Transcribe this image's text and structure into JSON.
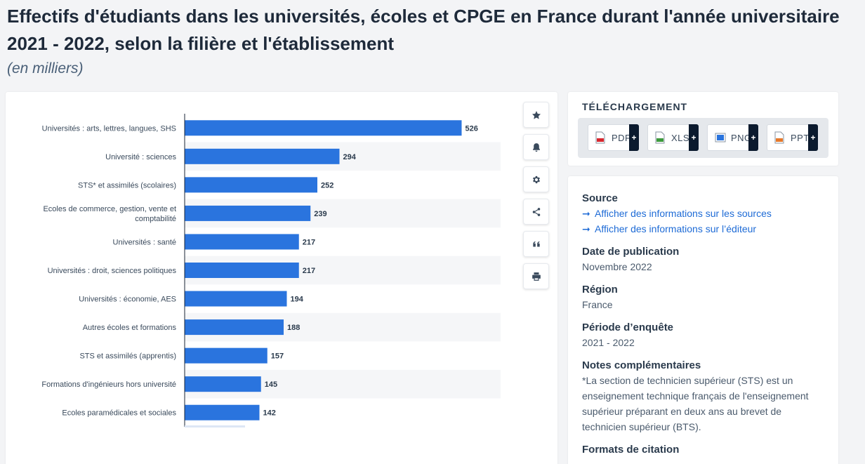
{
  "page": {
    "title": "Effectifs d'étudiants dans les universités, écoles et CPGE en France durant l'année universitaire 2021 - 2022, selon la filière et l'établissement",
    "subtitle": "(en milliers)"
  },
  "chart_data": {
    "type": "bar",
    "orientation": "horizontal",
    "title": "",
    "xlabel": "",
    "ylabel": "",
    "categories": [
      "Universités : arts, lettres, langues, SHS",
      "Université : sciences",
      "STS* et assimilés (scolaires)",
      "Ecoles de commerce, gestion, vente et comptabilité",
      "Universités : santé",
      "Universités : droit, sciences politiques",
      "Universités : économie, AES",
      "Autres écoles et formations",
      "STS et assimilés (apprentis)",
      "Formations d'ingénieurs hors université",
      "Ecoles paramédicales et sociales"
    ],
    "category_lines": [
      [
        "Universités : arts, lettres, langues, SHS"
      ],
      [
        "Université : sciences"
      ],
      [
        "STS* et assimilés (scolaires)"
      ],
      [
        "Ecoles de commerce, gestion, vente et",
        "comptabilité"
      ],
      [
        "Universités : santé"
      ],
      [
        "Universités : droit, sciences politiques"
      ],
      [
        "Universités : économie, AES"
      ],
      [
        "Autres écoles et formations"
      ],
      [
        "STS et assimilés (apprentis)"
      ],
      [
        "Formations d'ingénieurs hors université"
      ],
      [
        "Ecoles paramédicales et sociales"
      ]
    ],
    "values": [
      526,
      294,
      252,
      239,
      217,
      217,
      194,
      188,
      157,
      145,
      142
    ],
    "xlim": [
      0,
      600
    ],
    "bar_color": "#2a74de",
    "grid": false
  },
  "toolbar": {
    "icons": [
      "star-icon",
      "bell-icon",
      "gear-icon",
      "share-icon",
      "quote-icon",
      "print-icon"
    ]
  },
  "download": {
    "heading": "TÉLÉCHARGEMENT",
    "buttons": [
      {
        "label": "PDF",
        "plus": "+",
        "color": "#d8262e"
      },
      {
        "label": "XLS",
        "plus": "+",
        "color": "#3c9a3c"
      },
      {
        "label": "PNG",
        "plus": "+",
        "color": "#2a74de"
      },
      {
        "label": "PPT",
        "plus": "+",
        "color": "#e6782a"
      }
    ]
  },
  "info": {
    "source_h": "Source",
    "source_link1": "Afficher des informations sur les sources",
    "source_link2": "Afficher des informations sur l’éditeur",
    "date_h": "Date de publication",
    "date_v": "Novembre 2022",
    "region_h": "Région",
    "region_v": "France",
    "periode_h": "Période d’enquête",
    "periode_v": "2021 - 2022",
    "notes_h": "Notes complémentaires",
    "notes_v": "*La section de technicien supérieur (STS) est un enseignement technique français de l'enseignement supérieur préparant en deux ans au brevet de technicien supérieur (BTS).",
    "formats_h": "Formats de citation",
    "arrow": "➞"
  }
}
